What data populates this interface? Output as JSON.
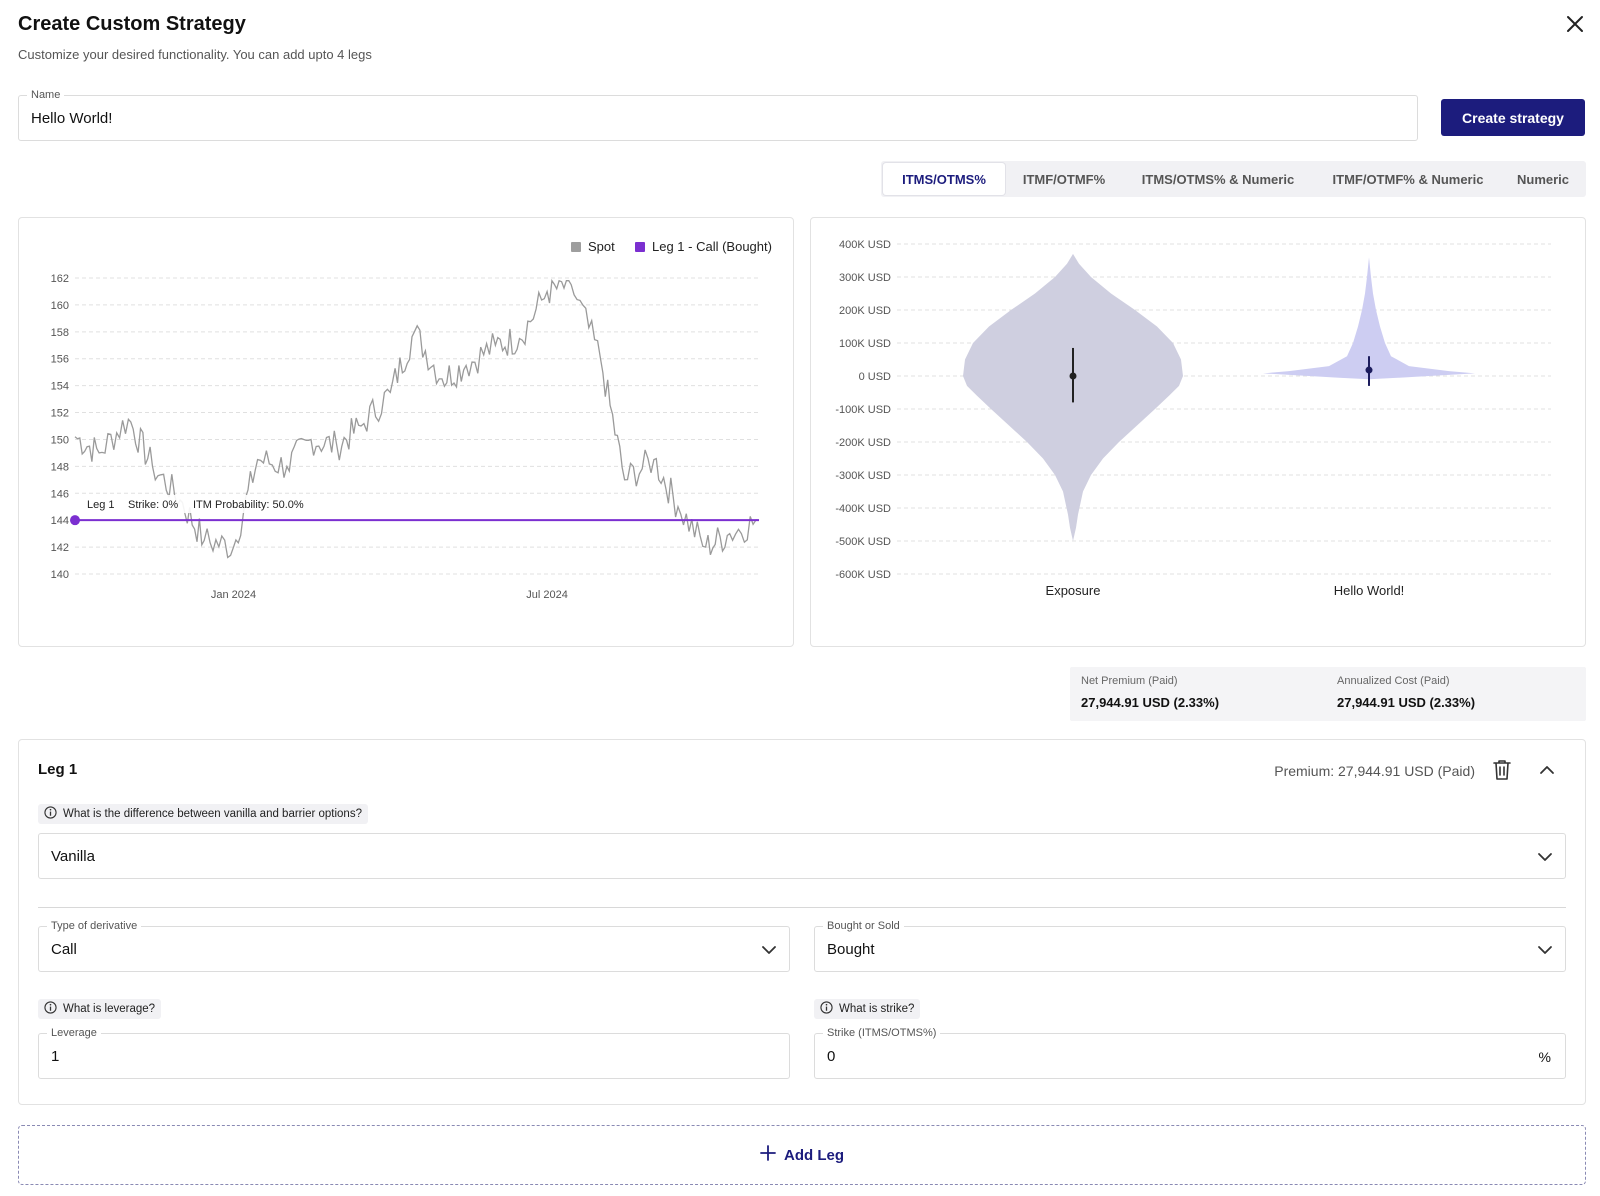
{
  "header": {
    "title": "Create Custom Strategy",
    "subtitle": "Customize your desired functionality. You can add upto 4 legs",
    "close_icon": "close-icon"
  },
  "name_field": {
    "label": "Name",
    "value": "Hello World!"
  },
  "create_button": {
    "label": "Create strategy"
  },
  "strike_tabs": {
    "items": [
      "ITMS/OTMS%",
      "ITMF/OTMF%",
      "ITMS/OTMS% & Numeric",
      "ITMF/OTMF% & Numeric",
      "Numeric"
    ],
    "active": "ITMS/OTMS%"
  },
  "colors": {
    "accent": "#1c1c7d",
    "spot": "#9e9e9e",
    "leg": "#7b2fd0",
    "violin_exposure": "#cdcde0",
    "violin_strategy": "#ccccf0"
  },
  "chart_data": [
    {
      "type": "line",
      "title": "",
      "xlabel": "",
      "ylabel": "",
      "ylim": [
        140,
        162
      ],
      "y_ticks": [
        140,
        142,
        144,
        146,
        148,
        150,
        152,
        154,
        156,
        158,
        160,
        162
      ],
      "x_tick_labels": [
        "Jan 2024",
        "Jul 2024"
      ],
      "x_ticks": [
        "2024-01-01",
        "2024-07-01"
      ],
      "legend": [
        "Spot",
        "Leg 1 - Call (Bought)"
      ],
      "legend_position": "top-right",
      "grid": true,
      "series": [
        {
          "name": "Spot",
          "x": [
            "2023-10-01",
            "2023-10-15",
            "2023-11-01",
            "2023-11-15",
            "2023-12-01",
            "2023-12-15",
            "2024-01-01",
            "2024-01-15",
            "2024-02-01",
            "2024-02-15",
            "2024-03-01",
            "2024-03-15",
            "2024-04-01",
            "2024-04-15",
            "2024-05-01",
            "2024-05-15",
            "2024-06-01",
            "2024-06-15",
            "2024-07-01",
            "2024-07-15",
            "2024-08-01",
            "2024-08-15",
            "2024-09-01",
            "2024-09-15",
            "2024-10-01",
            "2024-10-15",
            "2024-11-01"
          ],
          "values": [
            150.2,
            149.0,
            151.5,
            148.0,
            145.5,
            142.5,
            142.0,
            148.5,
            148.0,
            150.0,
            149.5,
            151.0,
            153.5,
            158.0,
            154.5,
            155.5,
            157.0,
            157.5,
            161.0,
            161.5,
            156.0,
            147.0,
            148.5,
            145.0,
            142.0,
            143.0,
            144.0
          ]
        },
        {
          "name": "Leg 1 - Call (Bought)",
          "x": [
            "2023-10-01",
            "2024-11-01"
          ],
          "values": [
            144,
            144
          ]
        }
      ],
      "annotations": [
        {
          "text": "Leg 1",
          "y": 144
        },
        {
          "text": "Strike: 0%",
          "y": 144
        },
        {
          "text": "ITM Probability: 50.0%",
          "y": 144
        }
      ]
    },
    {
      "type": "violin",
      "title": "",
      "xlabel": "",
      "ylabel": "",
      "ylim": [
        -600,
        400
      ],
      "y_unit": "K USD",
      "y_tick_labels": [
        "400K USD",
        "300K USD",
        "200K USD",
        "100K USD",
        "0 USD",
        "-100K USD",
        "-200K USD",
        "-300K USD",
        "-400K USD",
        "-500K USD",
        "-600K USD"
      ],
      "grid": true,
      "categories": [
        "Exposure",
        "Hello World!"
      ],
      "series": [
        {
          "name": "Exposure",
          "median": 0,
          "q1": -80,
          "q3": 85,
          "min": -500,
          "max": 370
        },
        {
          "name": "Hello World!",
          "median": 18,
          "q1": -30,
          "q3": 60,
          "min": -30,
          "max": 360
        }
      ]
    }
  ],
  "metrics": {
    "net_premium_label": "Net Premium (Paid)",
    "net_premium_value": "27,944.91 USD (2.33%)",
    "annualized_label": "Annualized Cost (Paid)",
    "annualized_value": "27,944.91 USD (2.33%)"
  },
  "leg": {
    "title": "Leg 1",
    "premium": "Premium: 27,944.91 USD (Paid)",
    "barrier_help": "What is the difference between vanilla and barrier options?",
    "option_style": "Vanilla",
    "type_label": "Type of derivative",
    "type_value": "Call",
    "side_label": "Bought or Sold",
    "side_value": "Bought",
    "leverage_help": "What is leverage?",
    "leverage_label": "Leverage",
    "leverage_value": "1",
    "strike_help": "What is strike?",
    "strike_label": "Strike (ITMS/OTMS%)",
    "strike_value": "0",
    "strike_unit": "%"
  },
  "add_leg": {
    "label": "Add Leg"
  }
}
